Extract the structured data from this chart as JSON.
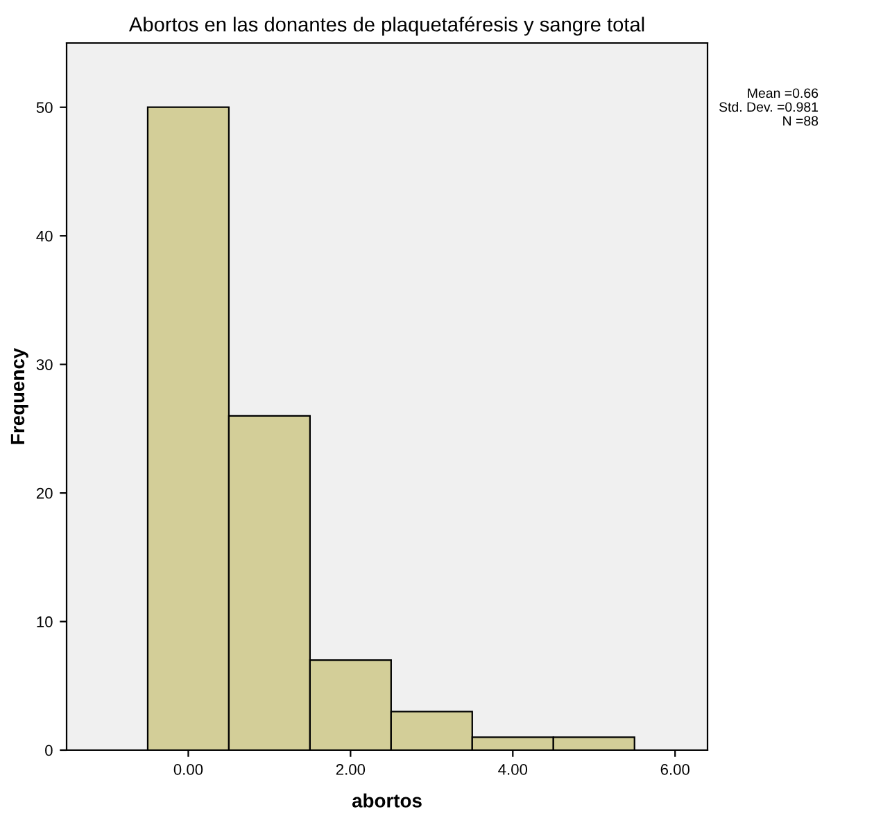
{
  "chart_data": {
    "type": "histogram",
    "title": "Abortos en las donantes de plaquetaféresis y sangre total",
    "xlabel": "abortos",
    "ylabel": "Frequency",
    "bins": [
      -0.5,
      0.5,
      1.5,
      2.5,
      3.5,
      4.5,
      5.5
    ],
    "values": [
      50,
      26,
      7,
      3,
      1,
      1
    ],
    "color": "#d3ce98",
    "xlim": [
      -1.5,
      6.4
    ],
    "xticks": [
      {
        "value": 0,
        "label": "0.00"
      },
      {
        "value": 2,
        "label": "2.00"
      },
      {
        "value": 4,
        "label": "4.00"
      },
      {
        "value": 6,
        "label": "6.00"
      }
    ],
    "ylim": [
      0,
      55
    ],
    "yticks": [
      0,
      10,
      20,
      30,
      40,
      50
    ],
    "annotations": [
      "Mean =0.66",
      "Std. Dev. =0.981",
      "N =88"
    ],
    "grid": false
  }
}
